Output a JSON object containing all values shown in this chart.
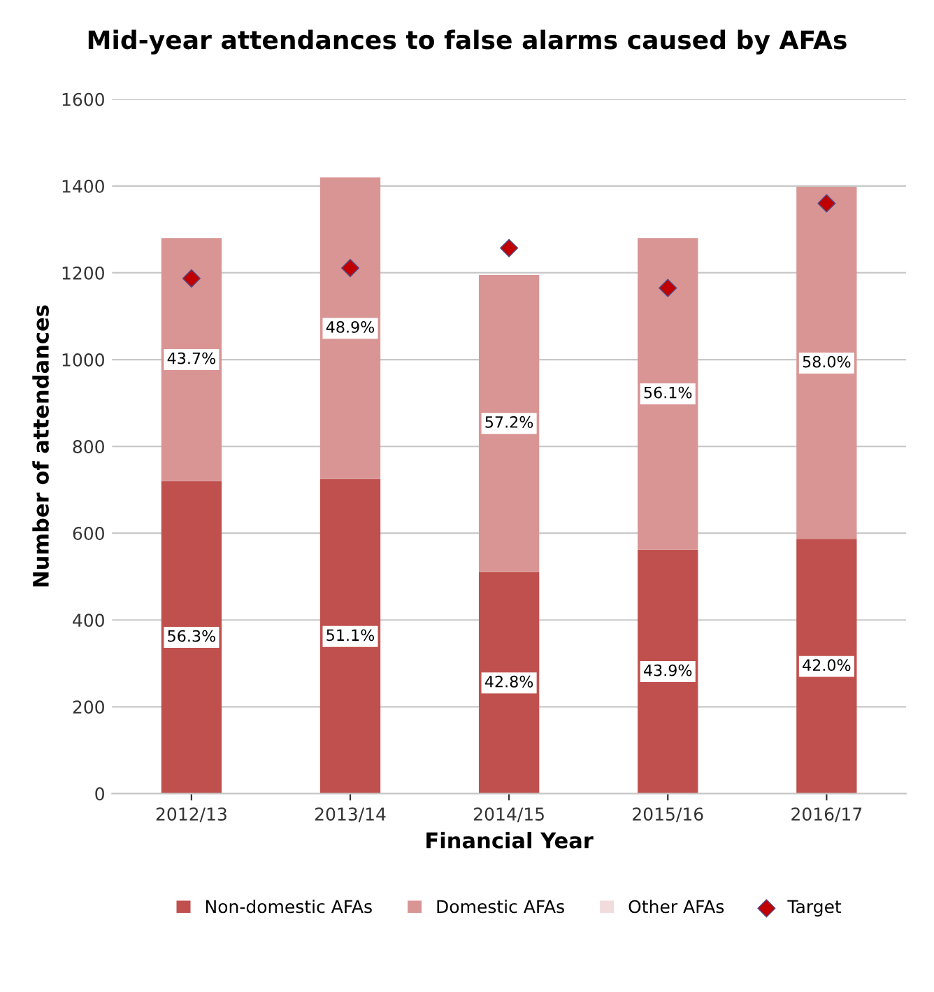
{
  "chart_data": {
    "type": "bar",
    "title": "Mid-year attendances to false alarms caused by AFAs",
    "xlabel": "Financial Year",
    "ylabel": "Number of attendances",
    "categories": [
      "2012/13",
      "2013/14",
      "2014/15",
      "2015/16",
      "2016/17"
    ],
    "annotations": [
      {
        "text": "56.3%",
        "x": "2012/13",
        "y": 360
      },
      {
        "text": "51.1%",
        "x": "2013/14",
        "y": 362
      },
      {
        "text": "42.8%",
        "x": "2014/15",
        "y": 255
      },
      {
        "text": "43.9%",
        "x": "2015/16",
        "y": 281
      },
      {
        "text": "42.0%",
        "x": "2016/17",
        "y": 293
      },
      {
        "text": "43.7%",
        "x": "2012/13",
        "y": 1000
      },
      {
        "text": "48.9%",
        "x": "2013/14",
        "y": 1072
      },
      {
        "text": "57.2%",
        "x": "2014/15",
        "y": 853
      },
      {
        "text": "56.1%",
        "x": "2015/16",
        "y": 921
      },
      {
        "text": "58.0%",
        "x": "2016/17",
        "y": 992
      }
    ],
    "stacked": true,
    "ylim": [
      0,
      1600
    ],
    "yticks": [
      0,
      200,
      400,
      600,
      800,
      1000,
      1200,
      1400,
      1600
    ],
    "grid": "y",
    "legend": "bottom",
    "series": [
      {
        "name": "Non-domestic AFAs",
        "color": "#c0504d",
        "values": [
          720,
          725,
          511,
          562,
          587
        ]
      },
      {
        "name": "Domestic AFAs",
        "color": "#d99594",
        "values": [
          560,
          695,
          684,
          718,
          811
        ]
      },
      {
        "name": "Other AFAs",
        "color": "#f2dcdb",
        "values": [
          0,
          0,
          0,
          0,
          0
        ]
      },
      {
        "name": "Target",
        "type": "scatter",
        "color": "#c00000",
        "marker": "diamond",
        "x": [
          "2012/13",
          "2013/14",
          "2014/15",
          "2015/16",
          "2016/17"
        ],
        "values": [
          1187,
          1211,
          1257,
          1165,
          1360
        ]
      }
    ]
  }
}
